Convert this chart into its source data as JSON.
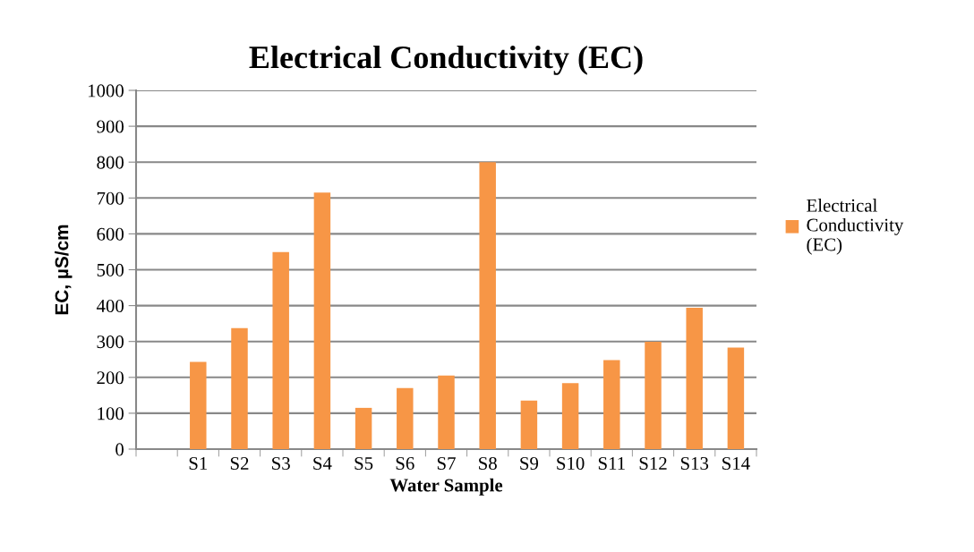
{
  "chart_data": {
    "type": "bar",
    "title": "Electrical Conductivity (EC)",
    "xlabel": "Water Sample",
    "ylabel": "EC, µS/cm",
    "categories": [
      null,
      "S1",
      "S2",
      "S3",
      "S4",
      "S5",
      "S6",
      "S7",
      "S8",
      "S9",
      "S10",
      "S11",
      "S12",
      "S13",
      "S14"
    ],
    "series": [
      {
        "name": "Electrical Conductivity (EC)",
        "color": "#f79646",
        "values": [
          null,
          243,
          337,
          549,
          715,
          115,
          170,
          205,
          800,
          135,
          184,
          248,
          299,
          394,
          283
        ]
      }
    ],
    "ylim": [
      0,
      1000
    ],
    "yticks": [
      0,
      100,
      200,
      300,
      400,
      500,
      600,
      700,
      800,
      900,
      1000
    ],
    "grid": "y",
    "legend": "right"
  }
}
